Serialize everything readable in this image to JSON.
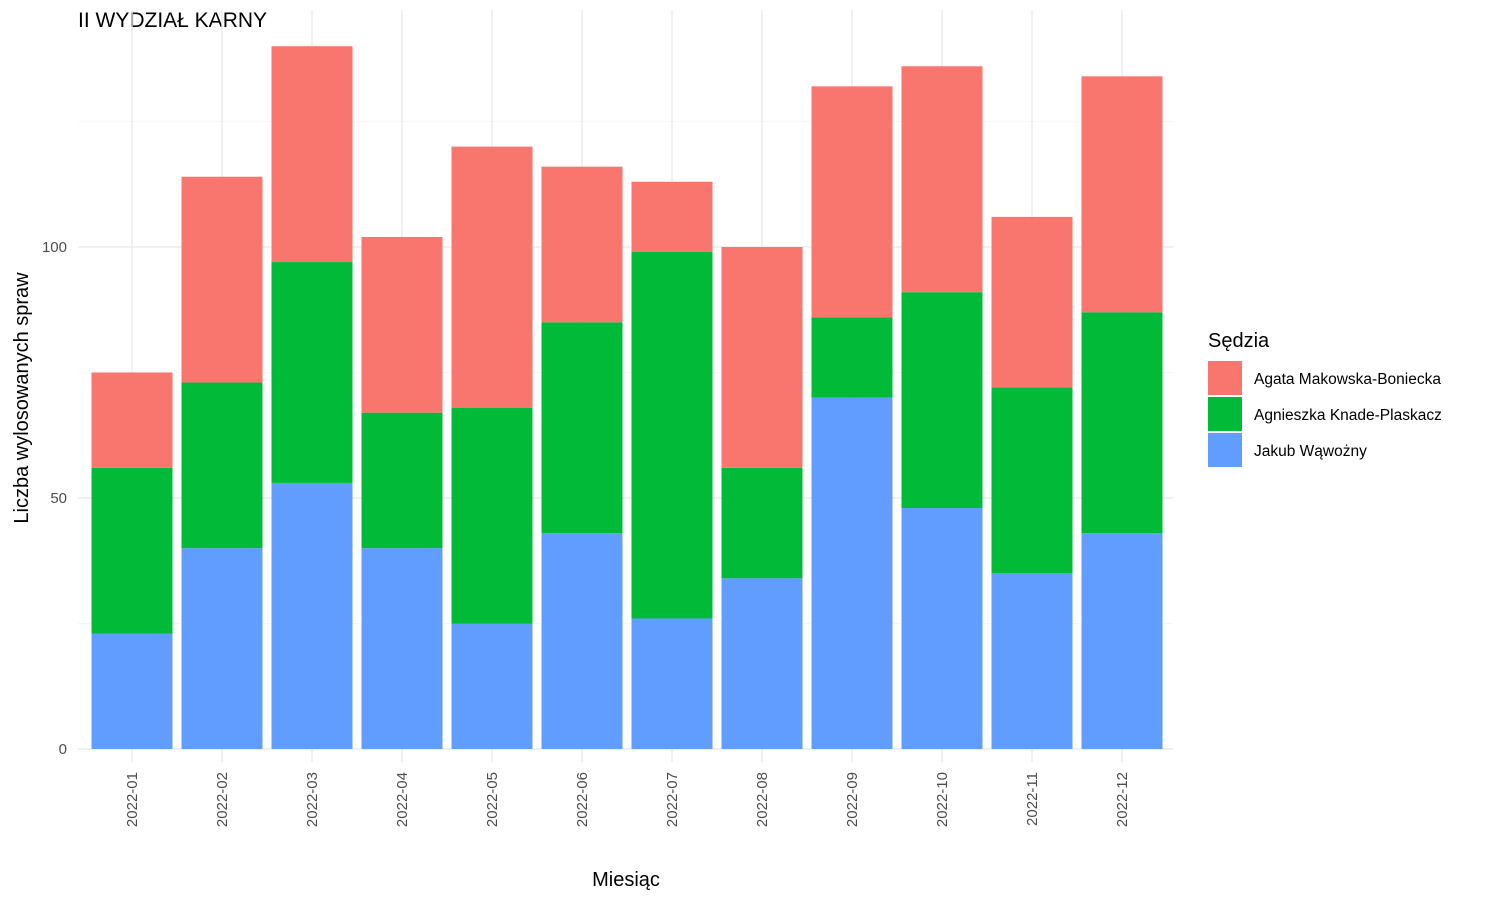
{
  "chart_data": {
    "type": "bar",
    "stacked": true,
    "title": "II WYDZIAŁ KARNY",
    "xlabel": "Miesiąc",
    "ylabel": "Liczba wylosowanych spraw",
    "ylim": [
      0,
      147
    ],
    "yticks": [
      0,
      50,
      100
    ],
    "grid": true,
    "legend": {
      "title": "Sędzia",
      "position": "right"
    },
    "categories": [
      "2022-01",
      "2022-02",
      "2022-03",
      "2022-04",
      "2022-05",
      "2022-06",
      "2022-07",
      "2022-08",
      "2022-09",
      "2022-10",
      "2022-11",
      "2022-12"
    ],
    "series": [
      {
        "name": "Jakub Wąwożny",
        "color": "#619CFF",
        "values": [
          23,
          40,
          53,
          40,
          25,
          43,
          26,
          34,
          70,
          48,
          35,
          43
        ]
      },
      {
        "name": "Agnieszka Knade-Plaskacz",
        "color": "#00BA38",
        "values": [
          33,
          33,
          44,
          27,
          43,
          42,
          73,
          22,
          16,
          43,
          37,
          44
        ]
      },
      {
        "name": "Agata Makowska-Boniecka",
        "color": "#F8766D",
        "values": [
          19,
          41,
          43,
          35,
          52,
          31,
          14,
          44,
          46,
          45,
          34,
          47
        ]
      }
    ],
    "legend_order": [
      "Agata Makowska-Boniecka",
      "Agnieszka Knade-Plaskacz",
      "Jakub Wąwożny"
    ]
  }
}
